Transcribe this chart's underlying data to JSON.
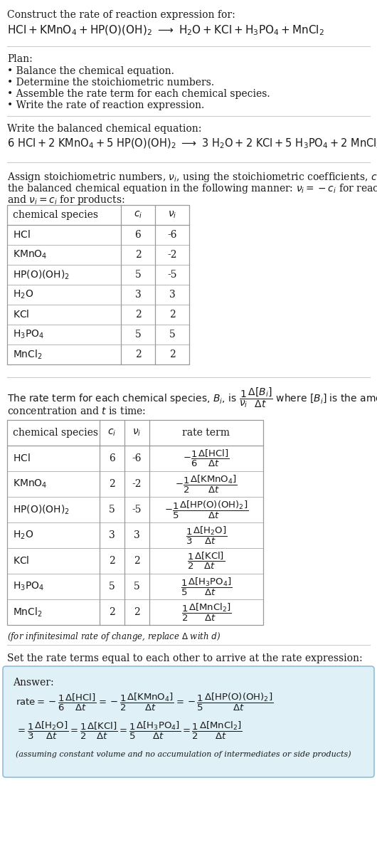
{
  "bg_color": "#ffffff",
  "text_color": "#1a1a1a",
  "table_border_color": "#999999",
  "separator_color": "#cccccc",
  "answer_box_color": "#dff0f7",
  "answer_border_color": "#90bfd4",
  "font_size": 10,
  "font_size_small": 8.5,
  "font_size_math": 9.5,
  "table1_rows": [
    [
      "HCl",
      "6",
      "-6"
    ],
    [
      "KMnO_4",
      "2",
      "-2"
    ],
    [
      "HP(O)(OH)_2",
      "5",
      "-5"
    ],
    [
      "H_2O",
      "3",
      "3"
    ],
    [
      "KCl",
      "2",
      "2"
    ],
    [
      "H_3PO_4",
      "5",
      "5"
    ],
    [
      "MnCl_2",
      "2",
      "2"
    ]
  ],
  "table2_rows": [
    [
      "HCl",
      "6",
      "-6"
    ],
    [
      "KMnO_4",
      "2",
      "-2"
    ],
    [
      "HP(O)(OH)_2",
      "5",
      "-5"
    ],
    [
      "H_2O",
      "3",
      "3"
    ],
    [
      "KCl",
      "2",
      "2"
    ],
    [
      "H_3PO_4",
      "5",
      "5"
    ],
    [
      "MnCl_2",
      "2",
      "2"
    ]
  ]
}
